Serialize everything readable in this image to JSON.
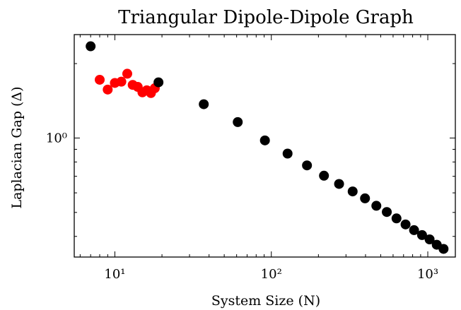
{
  "chart_data": {
    "type": "scatter",
    "title": "Triangular Dipole-Dipole Graph",
    "xlabel": "System Size (N)",
    "ylabel": "Laplacian Gap (Δ)",
    "xscale": "log",
    "yscale": "log",
    "xlim": [
      5.5,
      1500
    ],
    "ylim": [
      0.33,
      2.62
    ],
    "x_ticks": [
      {
        "value": 10,
        "label": "10¹"
      },
      {
        "value": 100,
        "label": "10²"
      },
      {
        "value": 1000,
        "label": "10³"
      }
    ],
    "y_ticks": [
      {
        "value": 1,
        "label": "10⁰"
      }
    ],
    "grid": false,
    "legend": "none",
    "series": [
      {
        "color": "#ff0000",
        "x": [
          8,
          9,
          10,
          11,
          12,
          13,
          14,
          15,
          16,
          17,
          18
        ],
        "y": [
          1.72,
          1.57,
          1.67,
          1.69,
          1.82,
          1.64,
          1.61,
          1.53,
          1.56,
          1.52,
          1.59
        ]
      },
      {
        "color": "#000000",
        "x": [
          7,
          19,
          37,
          61,
          91,
          127,
          169,
          217,
          271,
          331,
          397,
          469,
          547,
          631,
          721,
          817,
          919,
          1027,
          1141,
          1261
        ],
        "y": [
          2.35,
          1.68,
          1.37,
          1.16,
          0.978,
          0.865,
          0.775,
          0.704,
          0.652,
          0.608,
          0.57,
          0.532,
          0.502,
          0.473,
          0.447,
          0.424,
          0.405,
          0.389,
          0.37,
          0.356
        ]
      }
    ]
  }
}
